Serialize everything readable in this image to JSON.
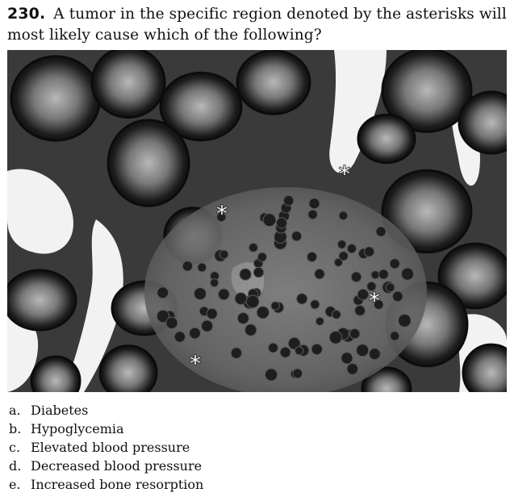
{
  "question": {
    "number": "230.",
    "text": "A tumor in the specific region denoted by the asterisks will most likely cause which of the following?"
  },
  "figure": {
    "marker_symbol": "*"
  },
  "options": [
    {
      "letter": "a.",
      "text": "Diabetes"
    },
    {
      "letter": "b.",
      "text": "Hypoglycemia"
    },
    {
      "letter": "c.",
      "text": "Elevated blood pressure"
    },
    {
      "letter": "d.",
      "text": "Decreased blood pressure"
    },
    {
      "letter": "e.",
      "text": "Increased bone resorption"
    }
  ]
}
